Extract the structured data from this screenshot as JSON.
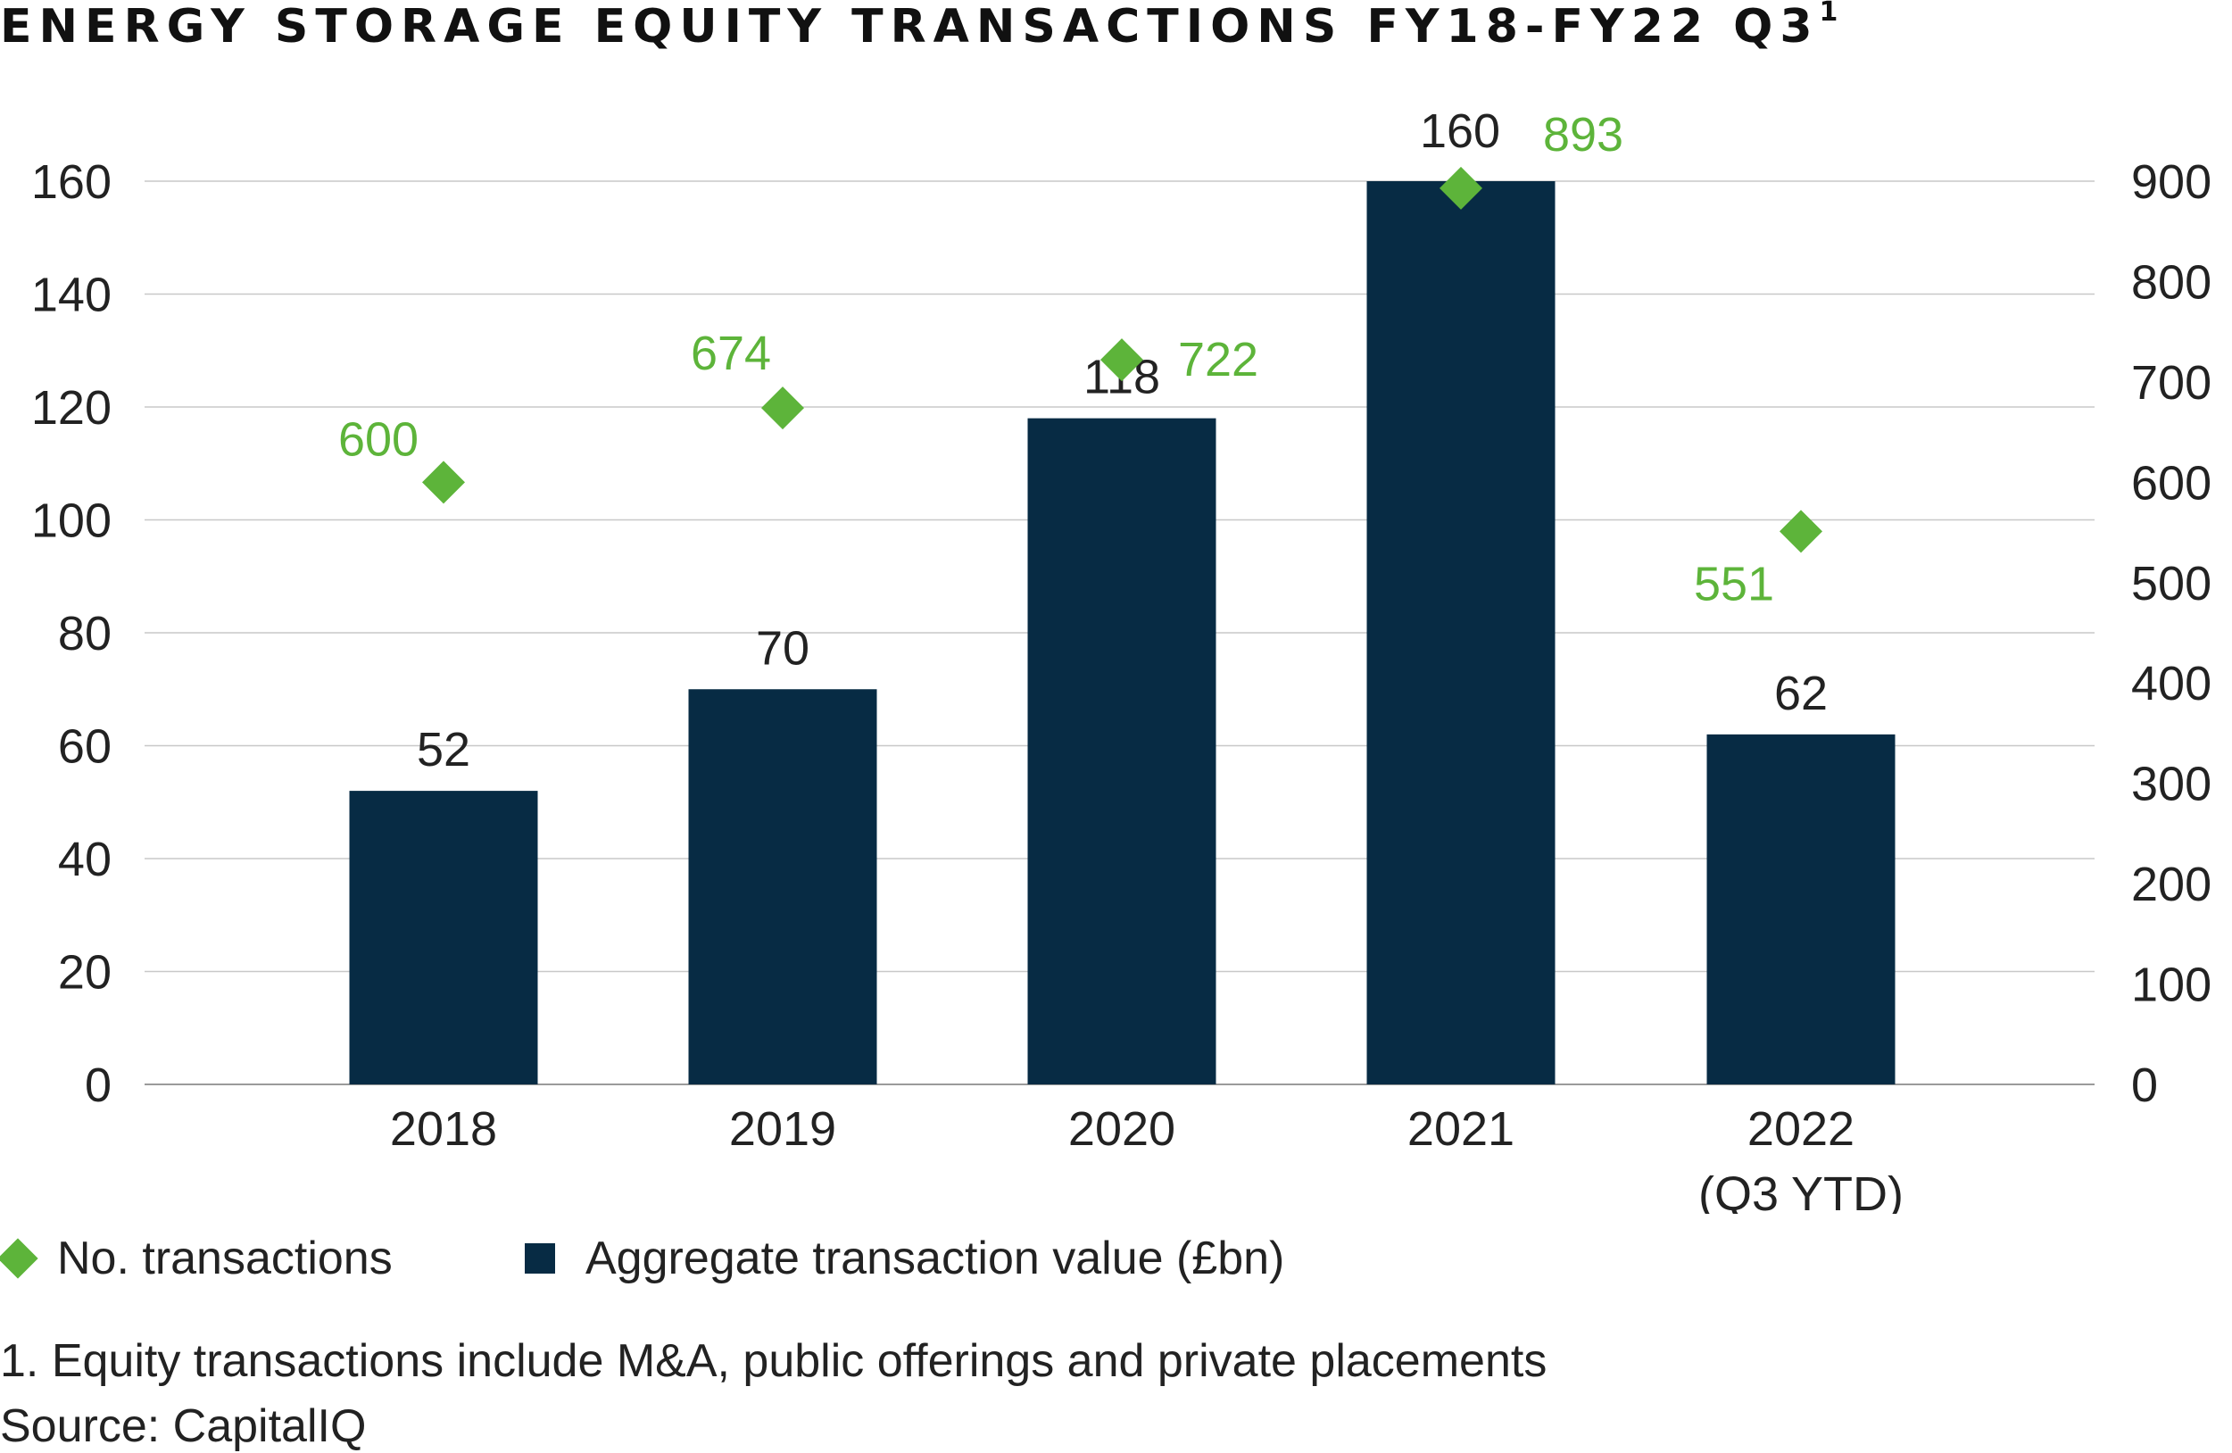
{
  "title": "ENERGY STORAGE EQUITY TRANSACTIONS FY18-FY22 Q3",
  "title_superscript": "1",
  "colors": {
    "bar": "#072b44",
    "marker": "#5db43a",
    "grid": "#c8c8c8"
  },
  "chart_data": {
    "type": "bar",
    "categories": [
      "2018",
      "2019",
      "2020",
      "2021",
      "2022\n(Q3 YTD)"
    ],
    "series": [
      {
        "name": "Aggregate transaction value (£bn)",
        "type": "bar",
        "axis": "left",
        "values": [
          52,
          70,
          118,
          160,
          62
        ]
      },
      {
        "name": "No. transactions",
        "type": "scatter",
        "axis": "right",
        "values": [
          600,
          674,
          722,
          893,
          551
        ]
      }
    ],
    "y_left": {
      "ylim": [
        0,
        160
      ],
      "ticks": [
        0,
        20,
        40,
        60,
        80,
        100,
        120,
        140,
        160
      ]
    },
    "y_right": {
      "ylim": [
        0,
        900
      ],
      "ticks": [
        0,
        100,
        200,
        300,
        400,
        500,
        600,
        700,
        800,
        900
      ]
    },
    "grid": true,
    "legend_position": "bottom-left"
  },
  "legend": [
    {
      "label": "No. transactions",
      "marker": "diamond"
    },
    {
      "label": "Aggregate transaction value (£bn)",
      "marker": "square"
    }
  ],
  "footnotes": [
    "1. Equity transactions include M&A, public offerings and private placements",
    "Source: CapitalIQ"
  ]
}
